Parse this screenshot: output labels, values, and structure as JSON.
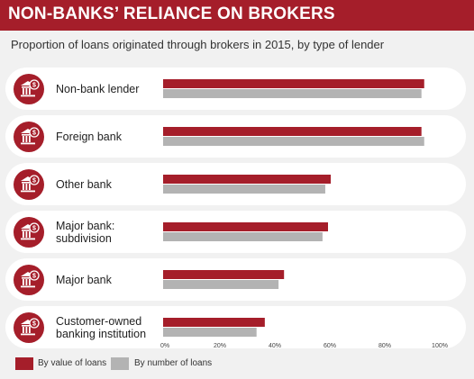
{
  "title": "NON-BANKS’ RELIANCE ON BROKERS",
  "subtitle": "Proportion of loans originated through brokers in 2015, by type of lender",
  "colors": {
    "accent": "#a51e2a",
    "value_series": "#a51e2a",
    "number_series": "#b3b3b3",
    "background": "#f1f1f1",
    "row_background": "#ffffff"
  },
  "icon": "bank-building-dollar-icon",
  "chart_data": {
    "type": "bar",
    "orientation": "horizontal",
    "title": "NON-BANKS’ RELIANCE ON BROKERS",
    "subtitle": "Proportion of loans originated through brokers in 2015, by type of lender",
    "categories": [
      [
        "Non-bank lender"
      ],
      [
        "Foreign bank"
      ],
      [
        "Other bank"
      ],
      [
        "Major bank:",
        "subdivision"
      ],
      [
        "Major bank"
      ],
      [
        "Customer-owned",
        "banking institution"
      ]
    ],
    "series": [
      {
        "name": "By value of loans",
        "values": [
          95,
          94,
          61,
          60,
          44,
          37
        ]
      },
      {
        "name": "By number of loans",
        "values": [
          94,
          95,
          59,
          58,
          42,
          34
        ]
      }
    ],
    "xlim": [
      0,
      100
    ],
    "xticks": [
      "0%",
      "20%",
      "40%",
      "60%",
      "80%",
      "100%"
    ],
    "xlabel": "",
    "ylabel": "",
    "grid": false,
    "legend_position": "bottom-left"
  }
}
